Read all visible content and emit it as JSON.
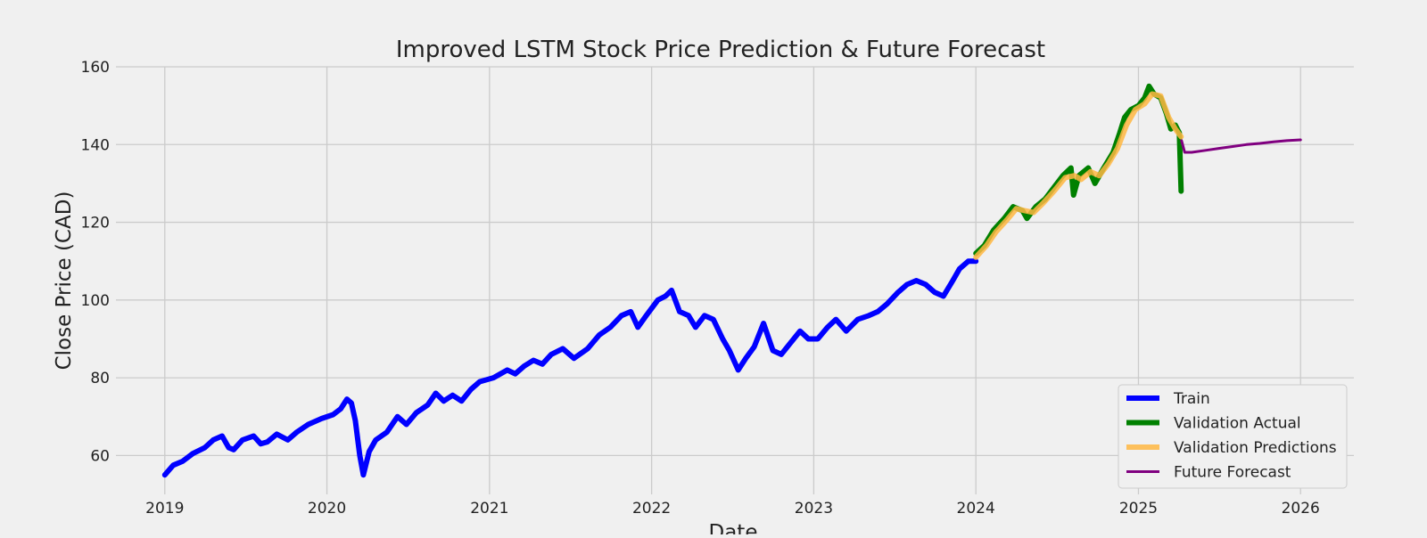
{
  "chart_data": {
    "type": "line",
    "title": "Improved LSTM Stock Price Prediction & Future Forecast",
    "xlabel": "Date",
    "ylabel": "Close Price (CAD)",
    "xlim": [
      "2018-09-13",
      "2026-05-01"
    ],
    "ylim": [
      50,
      160
    ],
    "x_ticks": [
      "2019",
      "2020",
      "2021",
      "2022",
      "2023",
      "2024",
      "2025",
      "2026"
    ],
    "y_ticks": [
      60,
      80,
      100,
      120,
      140,
      160
    ],
    "grid": true,
    "legend_position": "lower-right",
    "colors": {
      "background": "#f0f0f0",
      "grid": "#cbcbcb",
      "train": "#0000ff",
      "validation_actual": "#008000",
      "validation_predictions": "#ffb742",
      "future_forecast": "#800080"
    },
    "series": [
      {
        "name": "Train",
        "key": "train",
        "points": [
          [
            "2019-01-01",
            55
          ],
          [
            "2019-01-20",
            57.5
          ],
          [
            "2019-02-10",
            58.5
          ],
          [
            "2019-03-05",
            60.5
          ],
          [
            "2019-04-01",
            62
          ],
          [
            "2019-04-20",
            64
          ],
          [
            "2019-05-10",
            65
          ],
          [
            "2019-05-25",
            62
          ],
          [
            "2019-06-05",
            61.5
          ],
          [
            "2019-06-25",
            64
          ],
          [
            "2019-07-20",
            65
          ],
          [
            "2019-08-05",
            63
          ],
          [
            "2019-08-20",
            63.5
          ],
          [
            "2019-09-10",
            65.5
          ],
          [
            "2019-10-05",
            64
          ],
          [
            "2019-10-25",
            66
          ],
          [
            "2019-11-20",
            68
          ],
          [
            "2019-12-20",
            69.5
          ],
          [
            "2020-01-15",
            70.5
          ],
          [
            "2020-02-01",
            72
          ],
          [
            "2020-02-15",
            74.5
          ],
          [
            "2020-02-25",
            73.5
          ],
          [
            "2020-03-05",
            69
          ],
          [
            "2020-03-15",
            60
          ],
          [
            "2020-03-23",
            55
          ],
          [
            "2020-04-05",
            61
          ],
          [
            "2020-04-20",
            64
          ],
          [
            "2020-05-15",
            66
          ],
          [
            "2020-06-08",
            70
          ],
          [
            "2020-06-28",
            68
          ],
          [
            "2020-07-20",
            71
          ],
          [
            "2020-08-15",
            73
          ],
          [
            "2020-09-02",
            76
          ],
          [
            "2020-09-20",
            74
          ],
          [
            "2020-10-10",
            75.5
          ],
          [
            "2020-10-30",
            74
          ],
          [
            "2020-11-20",
            77
          ],
          [
            "2020-12-10",
            79
          ],
          [
            "2021-01-10",
            80
          ],
          [
            "2021-02-10",
            82
          ],
          [
            "2021-02-28",
            81
          ],
          [
            "2021-03-20",
            83
          ],
          [
            "2021-04-10",
            84.5
          ],
          [
            "2021-04-30",
            83.5
          ],
          [
            "2021-05-20",
            86
          ],
          [
            "2021-06-15",
            87.5
          ],
          [
            "2021-07-10",
            85
          ],
          [
            "2021-08-10",
            87.5
          ],
          [
            "2021-09-05",
            91
          ],
          [
            "2021-09-30",
            93
          ],
          [
            "2021-10-25",
            96
          ],
          [
            "2021-11-15",
            97
          ],
          [
            "2021-12-01",
            93
          ],
          [
            "2021-12-20",
            96
          ],
          [
            "2022-01-15",
            100
          ],
          [
            "2022-02-01",
            101
          ],
          [
            "2022-02-15",
            102.5
          ],
          [
            "2022-03-05",
            97
          ],
          [
            "2022-03-25",
            96
          ],
          [
            "2022-04-10",
            93
          ],
          [
            "2022-04-30",
            96
          ],
          [
            "2022-05-20",
            95
          ],
          [
            "2022-06-10",
            90
          ],
          [
            "2022-06-25",
            87
          ],
          [
            "2022-07-15",
            82
          ],
          [
            "2022-08-01",
            85
          ],
          [
            "2022-08-20",
            88
          ],
          [
            "2022-09-10",
            94
          ],
          [
            "2022-10-01",
            87
          ],
          [
            "2022-10-20",
            86
          ],
          [
            "2022-11-10",
            89
          ],
          [
            "2022-12-01",
            92
          ],
          [
            "2022-12-20",
            90
          ],
          [
            "2023-01-10",
            90
          ],
          [
            "2023-02-01",
            93
          ],
          [
            "2023-02-20",
            95
          ],
          [
            "2023-03-15",
            92
          ],
          [
            "2023-04-10",
            95
          ],
          [
            "2023-05-05",
            96
          ],
          [
            "2023-05-25",
            97
          ],
          [
            "2023-06-15",
            99
          ],
          [
            "2023-07-10",
            102
          ],
          [
            "2023-07-30",
            104
          ],
          [
            "2023-08-20",
            105
          ],
          [
            "2023-09-10",
            104
          ],
          [
            "2023-09-30",
            102
          ],
          [
            "2023-10-20",
            101
          ],
          [
            "2023-11-10",
            105
          ],
          [
            "2023-11-25",
            108
          ],
          [
            "2023-12-15",
            110
          ],
          [
            "2024-01-01",
            110
          ]
        ]
      },
      {
        "name": "Validation Actual",
        "key": "validation_actual",
        "points": [
          [
            "2024-01-01",
            112
          ],
          [
            "2024-01-20",
            114
          ],
          [
            "2024-02-10",
            118
          ],
          [
            "2024-03-05",
            121
          ],
          [
            "2024-03-25",
            124
          ],
          [
            "2024-04-15",
            123
          ],
          [
            "2024-04-25",
            121
          ],
          [
            "2024-05-15",
            124
          ],
          [
            "2024-06-05",
            126
          ],
          [
            "2024-06-25",
            129
          ],
          [
            "2024-07-15",
            132
          ],
          [
            "2024-08-02",
            134
          ],
          [
            "2024-08-08",
            127
          ],
          [
            "2024-08-20",
            132
          ],
          [
            "2024-09-10",
            134
          ],
          [
            "2024-09-25",
            130
          ],
          [
            "2024-10-15",
            134
          ],
          [
            "2024-11-05",
            138
          ],
          [
            "2024-11-20",
            143
          ],
          [
            "2024-12-01",
            147
          ],
          [
            "2024-12-15",
            149
          ],
          [
            "2025-01-01",
            150
          ],
          [
            "2025-01-15",
            152
          ],
          [
            "2025-01-25",
            155
          ],
          [
            "2025-02-05",
            153
          ],
          [
            "2025-02-20",
            152
          ],
          [
            "2025-03-05",
            148
          ],
          [
            "2025-03-15",
            144
          ],
          [
            "2025-03-25",
            145
          ],
          [
            "2025-04-03",
            143
          ],
          [
            "2025-04-07",
            128
          ]
        ]
      },
      {
        "name": "Validation Predictions",
        "key": "validation_predictions",
        "points": [
          [
            "2024-01-01",
            111
          ],
          [
            "2024-01-25",
            114
          ],
          [
            "2024-02-15",
            117.5
          ],
          [
            "2024-03-10",
            120.5
          ],
          [
            "2024-04-01",
            123.5
          ],
          [
            "2024-04-20",
            123
          ],
          [
            "2024-05-10",
            122.5
          ],
          [
            "2024-06-01",
            125
          ],
          [
            "2024-06-25",
            128
          ],
          [
            "2024-07-20",
            131.5
          ],
          [
            "2024-08-10",
            132
          ],
          [
            "2024-08-25",
            131
          ],
          [
            "2024-09-15",
            133
          ],
          [
            "2024-10-05",
            132
          ],
          [
            "2024-10-25",
            135
          ],
          [
            "2024-11-15",
            139
          ],
          [
            "2024-12-05",
            145
          ],
          [
            "2024-12-25",
            149
          ],
          [
            "2025-01-15",
            150.5
          ],
          [
            "2025-02-01",
            153
          ],
          [
            "2025-02-20",
            152.5
          ],
          [
            "2025-03-10",
            147
          ],
          [
            "2025-03-25",
            144
          ],
          [
            "2025-04-07",
            142
          ]
        ]
      },
      {
        "name": "Future Forecast",
        "key": "future_forecast",
        "points": [
          [
            "2025-04-08",
            141
          ],
          [
            "2025-04-15",
            138
          ],
          [
            "2025-05-01",
            138
          ],
          [
            "2025-06-01",
            138.5
          ],
          [
            "2025-07-01",
            139
          ],
          [
            "2025-08-01",
            139.5
          ],
          [
            "2025-09-01",
            140
          ],
          [
            "2025-10-01",
            140.3
          ],
          [
            "2025-11-01",
            140.7
          ],
          [
            "2025-12-01",
            141
          ],
          [
            "2026-01-01",
            141.2
          ]
        ]
      }
    ]
  }
}
